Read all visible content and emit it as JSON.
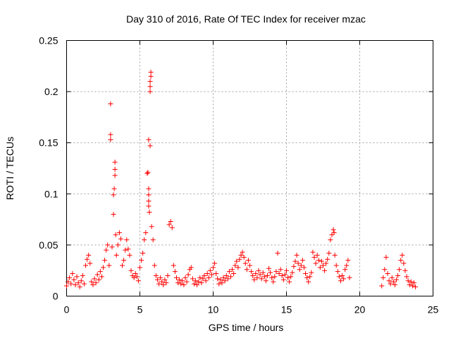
{
  "chart_data": {
    "type": "scatter",
    "title": "Day 310 of 2016, Rate Of TEC Index for receiver mzac",
    "xlabel": "GPS time / hours",
    "ylabel": "ROTI / TECUs",
    "xlim": [
      0,
      25
    ],
    "ylim": [
      0,
      0.25
    ],
    "x_ticks": [
      0,
      5,
      10,
      15,
      20,
      25
    ],
    "x_tick_labels": [
      "0",
      "5",
      "10",
      "15",
      "20",
      "25"
    ],
    "y_ticks": [
      0,
      0.05,
      0.1,
      0.15,
      0.2,
      0.25
    ],
    "y_tick_labels": [
      "0",
      "0.05",
      "0.1",
      "0.15",
      "0.2",
      "0.25"
    ],
    "grid": true,
    "marker": "+",
    "color": "#ff0000",
    "series": [
      {
        "name": "ROTI",
        "points": [
          [
            0.0,
            0.01
          ],
          [
            0.1,
            0.014
          ],
          [
            0.2,
            0.018
          ],
          [
            0.3,
            0.012
          ],
          [
            0.4,
            0.022
          ],
          [
            0.5,
            0.016
          ],
          [
            0.6,
            0.011
          ],
          [
            0.7,
            0.019
          ],
          [
            0.8,
            0.013
          ],
          [
            0.9,
            0.009
          ],
          [
            1.0,
            0.015
          ],
          [
            1.1,
            0.02
          ],
          [
            1.2,
            0.012
          ],
          [
            1.3,
            0.03
          ],
          [
            1.4,
            0.036
          ],
          [
            1.5,
            0.04
          ],
          [
            1.6,
            0.032
          ],
          [
            1.7,
            0.014
          ],
          [
            1.8,
            0.011
          ],
          [
            1.9,
            0.017
          ],
          [
            2.0,
            0.013
          ],
          [
            2.1,
            0.021
          ],
          [
            2.2,
            0.016
          ],
          [
            2.3,
            0.024
          ],
          [
            2.4,
            0.019
          ],
          [
            2.5,
            0.028
          ],
          [
            2.6,
            0.035
          ],
          [
            2.7,
            0.045
          ],
          [
            2.8,
            0.05
          ],
          [
            2.9,
            0.03
          ],
          [
            3.0,
            0.188
          ],
          [
            3.0,
            0.158
          ],
          [
            3.0,
            0.153
          ],
          [
            3.1,
            0.048
          ],
          [
            3.2,
            0.08
          ],
          [
            3.2,
            0.099
          ],
          [
            3.25,
            0.105
          ],
          [
            3.3,
            0.118
          ],
          [
            3.3,
            0.124
          ],
          [
            3.3,
            0.131
          ],
          [
            3.35,
            0.06
          ],
          [
            3.4,
            0.04
          ],
          [
            3.5,
            0.05
          ],
          [
            3.6,
            0.062
          ],
          [
            3.7,
            0.056
          ],
          [
            3.8,
            0.03
          ],
          [
            3.9,
            0.035
          ],
          [
            4.0,
            0.045
          ],
          [
            4.1,
            0.055
          ],
          [
            4.2,
            0.046
          ],
          [
            4.3,
            0.04
          ],
          [
            4.4,
            0.025
          ],
          [
            4.5,
            0.02
          ],
          [
            4.6,
            0.018
          ],
          [
            4.7,
            0.022
          ],
          [
            4.8,
            0.019
          ],
          [
            4.9,
            0.015
          ],
          [
            5.0,
            0.028
          ],
          [
            5.1,
            0.035
          ],
          [
            5.2,
            0.042
          ],
          [
            5.3,
            0.055
          ],
          [
            5.4,
            0.062
          ],
          [
            5.5,
            0.12
          ],
          [
            5.55,
            0.121
          ],
          [
            5.6,
            0.105
          ],
          [
            5.6,
            0.099
          ],
          [
            5.6,
            0.093
          ],
          [
            5.6,
            0.088
          ],
          [
            5.65,
            0.082
          ],
          [
            5.6,
            0.153
          ],
          [
            5.7,
            0.147
          ],
          [
            5.7,
            0.2
          ],
          [
            5.7,
            0.205
          ],
          [
            5.7,
            0.21
          ],
          [
            5.75,
            0.215
          ],
          [
            5.75,
            0.219
          ],
          [
            5.8,
            0.068
          ],
          [
            5.9,
            0.055
          ],
          [
            6.0,
            0.03
          ],
          [
            6.1,
            0.02
          ],
          [
            6.2,
            0.016
          ],
          [
            6.3,
            0.012
          ],
          [
            6.4,
            0.018
          ],
          [
            6.5,
            0.014
          ],
          [
            6.6,
            0.011
          ],
          [
            6.7,
            0.016
          ],
          [
            6.8,
            0.013
          ],
          [
            6.9,
            0.02
          ],
          [
            7.0,
            0.07
          ],
          [
            7.1,
            0.073
          ],
          [
            7.2,
            0.067
          ],
          [
            7.3,
            0.03
          ],
          [
            7.4,
            0.024
          ],
          [
            7.5,
            0.018
          ],
          [
            7.6,
            0.013
          ],
          [
            7.7,
            0.016
          ],
          [
            7.8,
            0.012
          ],
          [
            7.9,
            0.015
          ],
          [
            8.0,
            0.011
          ],
          [
            8.1,
            0.018
          ],
          [
            8.2,
            0.014
          ],
          [
            8.3,
            0.021
          ],
          [
            8.4,
            0.026
          ],
          [
            8.5,
            0.028
          ],
          [
            8.6,
            0.017
          ],
          [
            8.7,
            0.012
          ],
          [
            8.8,
            0.015
          ],
          [
            8.9,
            0.011
          ],
          [
            9.0,
            0.014
          ],
          [
            9.1,
            0.018
          ],
          [
            9.2,
            0.013
          ],
          [
            9.3,
            0.017
          ],
          [
            9.4,
            0.02
          ],
          [
            9.5,
            0.015
          ],
          [
            9.6,
            0.022
          ],
          [
            9.7,
            0.018
          ],
          [
            9.8,
            0.025
          ],
          [
            9.9,
            0.021
          ],
          [
            10.0,
            0.028
          ],
          [
            10.1,
            0.032
          ],
          [
            10.2,
            0.022
          ],
          [
            10.3,
            0.017
          ],
          [
            10.4,
            0.012
          ],
          [
            10.5,
            0.016
          ],
          [
            10.6,
            0.013
          ],
          [
            10.7,
            0.018
          ],
          [
            10.8,
            0.015
          ],
          [
            10.9,
            0.02
          ],
          [
            11.0,
            0.017
          ],
          [
            11.1,
            0.024
          ],
          [
            11.2,
            0.019
          ],
          [
            11.3,
            0.026
          ],
          [
            11.4,
            0.022
          ],
          [
            11.5,
            0.03
          ],
          [
            11.6,
            0.034
          ],
          [
            11.7,
            0.028
          ],
          [
            11.8,
            0.036
          ],
          [
            11.9,
            0.04
          ],
          [
            12.0,
            0.043
          ],
          [
            12.1,
            0.038
          ],
          [
            12.2,
            0.032
          ],
          [
            12.3,
            0.026
          ],
          [
            12.4,
            0.035
          ],
          [
            12.5,
            0.03
          ],
          [
            12.6,
            0.024
          ],
          [
            12.7,
            0.02
          ],
          [
            12.8,
            0.016
          ],
          [
            12.9,
            0.022
          ],
          [
            13.0,
            0.018
          ],
          [
            13.1,
            0.025
          ],
          [
            13.2,
            0.021
          ],
          [
            13.3,
            0.017
          ],
          [
            13.4,
            0.023
          ],
          [
            13.5,
            0.019
          ],
          [
            13.6,
            0.015
          ],
          [
            13.7,
            0.02
          ],
          [
            13.8,
            0.027
          ],
          [
            13.9,
            0.023
          ],
          [
            14.0,
            0.018
          ],
          [
            14.1,
            0.014
          ],
          [
            14.2,
            0.019
          ],
          [
            14.3,
            0.024
          ],
          [
            14.4,
            0.042
          ],
          [
            14.5,
            0.022
          ],
          [
            14.6,
            0.026
          ],
          [
            14.7,
            0.02
          ],
          [
            14.8,
            0.016
          ],
          [
            14.9,
            0.021
          ],
          [
            15.0,
            0.025
          ],
          [
            15.1,
            0.018
          ],
          [
            15.2,
            0.014
          ],
          [
            15.3,
            0.019
          ],
          [
            15.4,
            0.023
          ],
          [
            15.5,
            0.029
          ],
          [
            15.6,
            0.034
          ],
          [
            15.7,
            0.04
          ],
          [
            15.8,
            0.032
          ],
          [
            15.9,
            0.026
          ],
          [
            16.0,
            0.03
          ],
          [
            16.1,
            0.035
          ],
          [
            16.2,
            0.028
          ],
          [
            16.3,
            0.022
          ],
          [
            16.4,
            0.018
          ],
          [
            16.5,
            0.014
          ],
          [
            16.6,
            0.019
          ],
          [
            16.7,
            0.023
          ],
          [
            16.8,
            0.043
          ],
          [
            16.9,
            0.038
          ],
          [
            17.0,
            0.032
          ],
          [
            17.1,
            0.04
          ],
          [
            17.2,
            0.035
          ],
          [
            17.3,
            0.028
          ],
          [
            17.4,
            0.034
          ],
          [
            17.5,
            0.03
          ],
          [
            17.6,
            0.025
          ],
          [
            17.7,
            0.032
          ],
          [
            17.8,
            0.036
          ],
          [
            17.9,
            0.042
          ],
          [
            18.0,
            0.055
          ],
          [
            18.1,
            0.06
          ],
          [
            18.2,
            0.065
          ],
          [
            18.25,
            0.062
          ],
          [
            18.3,
            0.04
          ],
          [
            18.4,
            0.03
          ],
          [
            18.5,
            0.024
          ],
          [
            18.6,
            0.019
          ],
          [
            18.7,
            0.015
          ],
          [
            18.8,
            0.02
          ],
          [
            18.9,
            0.017
          ],
          [
            19.0,
            0.026
          ],
          [
            19.1,
            0.03
          ],
          [
            19.2,
            0.035
          ],
          [
            19.3,
            0.018
          ],
          [
            21.5,
            0.01
          ],
          [
            21.6,
            0.018
          ],
          [
            21.7,
            0.026
          ],
          [
            21.8,
            0.038
          ],
          [
            21.9,
            0.022
          ],
          [
            22.0,
            0.015
          ],
          [
            22.1,
            0.012
          ],
          [
            22.2,
            0.018
          ],
          [
            22.3,
            0.014
          ],
          [
            22.4,
            0.011
          ],
          [
            22.5,
            0.016
          ],
          [
            22.6,
            0.02
          ],
          [
            22.7,
            0.026
          ],
          [
            22.8,
            0.035
          ],
          [
            22.9,
            0.04
          ],
          [
            23.0,
            0.032
          ],
          [
            23.1,
            0.025
          ],
          [
            23.2,
            0.019
          ],
          [
            23.3,
            0.015
          ],
          [
            23.4,
            0.011
          ],
          [
            23.5,
            0.014
          ],
          [
            23.6,
            0.01
          ],
          [
            23.7,
            0.013
          ],
          [
            23.8,
            0.009
          ]
        ]
      }
    ]
  }
}
